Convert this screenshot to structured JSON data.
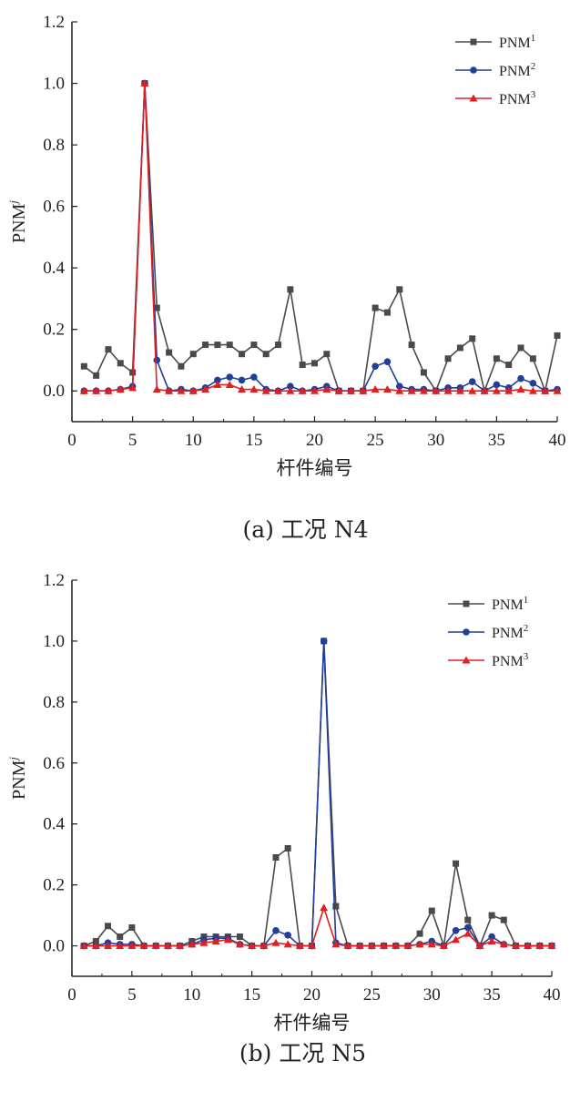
{
  "chart_data": [
    {
      "type": "line",
      "caption": "(a) 工况 N4",
      "xlabel": "杆件编号",
      "ylabel": "PNM",
      "ylabel_sup": "j",
      "xlim": [
        0,
        40
      ],
      "ylim": [
        -0.1,
        1.2
      ],
      "xticks": [
        "0",
        "5",
        "10",
        "15",
        "20",
        "25",
        "30",
        "35",
        "40"
      ],
      "yticks": [
        "0.0",
        "0.2",
        "0.4",
        "0.6",
        "0.8",
        "1.0",
        "1.2"
      ],
      "legend_position": "top-right",
      "x": [
        1,
        2,
        3,
        4,
        5,
        6,
        7,
        8,
        9,
        10,
        11,
        12,
        13,
        14,
        15,
        16,
        17,
        18,
        19,
        20,
        21,
        22,
        23,
        24,
        25,
        26,
        27,
        28,
        29,
        30,
        31,
        32,
        33,
        34,
        35,
        36,
        37,
        38,
        39,
        40
      ],
      "series": [
        {
          "name": "PNM",
          "sup": "1",
          "color": "#4a4a4a",
          "marker": "square",
          "values": [
            0.08,
            0.05,
            0.135,
            0.09,
            0.06,
            1.0,
            0.27,
            0.125,
            0.08,
            0.12,
            0.15,
            0.15,
            0.15,
            0.12,
            0.15,
            0.12,
            0.15,
            0.33,
            0.085,
            0.09,
            0.12,
            0.0,
            0.0,
            0.0,
            0.27,
            0.255,
            0.33,
            0.15,
            0.06,
            0.0,
            0.105,
            0.14,
            0.17,
            0.0,
            0.105,
            0.085,
            0.14,
            0.105,
            0.0,
            0.18
          ]
        },
        {
          "name": "PNM",
          "sup": "2",
          "color": "#1f3f9a",
          "marker": "circle",
          "values": [
            0.0,
            0.0,
            0.0,
            0.005,
            0.015,
            1.0,
            0.1,
            0.0,
            0.005,
            0.0,
            0.01,
            0.035,
            0.045,
            0.035,
            0.045,
            0.005,
            0.0,
            0.015,
            0.0,
            0.005,
            0.015,
            0.0,
            0.0,
            0.0,
            0.08,
            0.095,
            0.015,
            0.005,
            0.005,
            0.0,
            0.01,
            0.01,
            0.03,
            0.0,
            0.02,
            0.01,
            0.04,
            0.025,
            0.0,
            0.005
          ]
        },
        {
          "name": "PNM",
          "sup": "3",
          "color": "#e02020",
          "marker": "triangle",
          "values": [
            0.0,
            0.0,
            0.0,
            0.005,
            0.01,
            1.0,
            0.005,
            0.0,
            0.0,
            0.0,
            0.005,
            0.02,
            0.02,
            0.005,
            0.005,
            0.0,
            0.0,
            0.0,
            0.0,
            0.0,
            0.005,
            0.0,
            0.0,
            0.0,
            0.005,
            0.005,
            0.0,
            0.0,
            0.0,
            0.0,
            0.0,
            0.0,
            0.0,
            0.0,
            0.0,
            0.0,
            0.005,
            0.0,
            0.0,
            0.0
          ]
        }
      ]
    },
    {
      "type": "line",
      "caption": "(b) 工况 N5",
      "xlabel": "杆件编号",
      "ylabel": "PNM",
      "ylabel_sup": "j",
      "xlim": [
        0,
        40
      ],
      "ylim": [
        -0.1,
        1.2
      ],
      "xticks": [
        "0",
        "5",
        "10",
        "15",
        "20",
        "25",
        "30",
        "35",
        "40"
      ],
      "yticks": [
        "0.0",
        "0.2",
        "0.4",
        "0.6",
        "0.8",
        "1.0",
        "1.2"
      ],
      "legend_position": "top-right",
      "x": [
        1,
        2,
        3,
        4,
        5,
        6,
        7,
        8,
        9,
        10,
        11,
        12,
        13,
        14,
        15,
        16,
        17,
        18,
        19,
        20,
        21,
        22,
        23,
        24,
        25,
        26,
        27,
        28,
        29,
        30,
        31,
        32,
        33,
        34,
        35,
        36,
        37,
        38,
        39,
        40
      ],
      "series": [
        {
          "name": "PNM",
          "sup": "1",
          "color": "#4a4a4a",
          "marker": "square",
          "values": [
            0.0,
            0.015,
            0.065,
            0.03,
            0.06,
            0.0,
            0.0,
            0.0,
            0.0,
            0.015,
            0.03,
            0.03,
            0.03,
            0.03,
            0.0,
            0.0,
            0.29,
            0.32,
            0.0,
            0.0,
            1.0,
            0.13,
            0.0,
            0.0,
            0.0,
            0.0,
            0.0,
            0.0,
            0.04,
            0.115,
            0.0,
            0.27,
            0.085,
            0.0,
            0.1,
            0.085,
            0.0,
            0.0,
            0.0,
            0.0
          ]
        },
        {
          "name": "PNM",
          "sup": "2",
          "color": "#1f3f9a",
          "marker": "circle",
          "values": [
            0.0,
            0.0,
            0.01,
            0.005,
            0.005,
            0.0,
            0.0,
            0.0,
            0.0,
            0.005,
            0.02,
            0.025,
            0.025,
            0.005,
            0.0,
            0.0,
            0.05,
            0.035,
            0.0,
            0.0,
            1.0,
            0.01,
            0.0,
            0.0,
            0.0,
            0.0,
            0.0,
            0.0,
            0.005,
            0.015,
            0.0,
            0.05,
            0.06,
            0.0,
            0.03,
            0.005,
            0.0,
            0.0,
            0.0,
            0.0
          ]
        },
        {
          "name": "PNM",
          "sup": "3",
          "color": "#e02020",
          "marker": "triangle",
          "values": [
            0.0,
            0.0,
            0.0,
            0.0,
            0.0,
            0.0,
            0.0,
            0.0,
            0.0,
            0.005,
            0.01,
            0.015,
            0.02,
            0.005,
            0.0,
            0.0,
            0.01,
            0.005,
            0.0,
            0.0,
            0.125,
            0.005,
            0.0,
            0.0,
            0.0,
            0.0,
            0.0,
            0.0,
            0.005,
            0.005,
            0.0,
            0.02,
            0.04,
            0.0,
            0.015,
            0.005,
            0.0,
            0.0,
            0.0,
            0.0
          ]
        }
      ]
    }
  ]
}
